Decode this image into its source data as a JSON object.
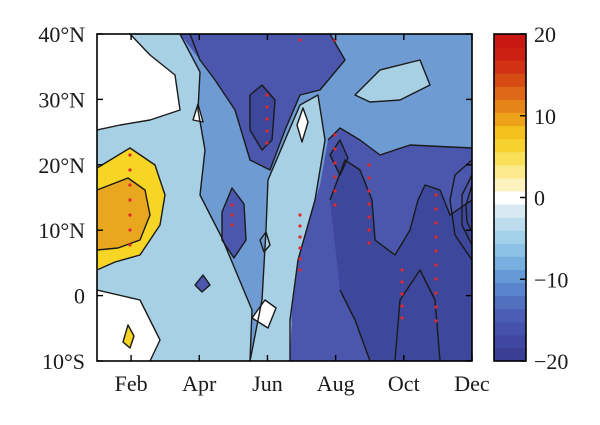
{
  "chart_data": {
    "type": "heatmap",
    "title": "",
    "xlabel": "",
    "ylabel": "",
    "x_tick_labels": [
      "Feb",
      "Apr",
      "Jun",
      "Aug",
      "Oct",
      "Dec"
    ],
    "x_ticks": [
      2,
      4,
      6,
      8,
      10,
      12
    ],
    "xlim": [
      1,
      12
    ],
    "y_tick_labels": [
      "10°S",
      "0",
      "10°N",
      "20°N",
      "30°N",
      "40°N"
    ],
    "y_ticks": [
      -10,
      0,
      10,
      20,
      30,
      40
    ],
    "ylim": [
      -10,
      40
    ],
    "colorbar": {
      "min": -20,
      "max": 20,
      "tick_values": [
        -20,
        -10,
        0,
        10,
        20
      ],
      "tick_labels": [
        "−20",
        "−10",
        "0",
        "10",
        "20"
      ],
      "colors": [
        "#3a3f94",
        "#3f47a0",
        "#4552ab",
        "#4b5eb6",
        "#5270c0",
        "#5a84cc",
        "#6699d6",
        "#77afdf",
        "#8bc2e6",
        "#a3d1ea",
        "#bdddee",
        "#d8e9f2",
        "#ffffff",
        "#fbf2bd",
        "#fbe98c",
        "#f9df5a",
        "#f7d12d",
        "#f4c01b",
        "#eea219",
        "#e58518",
        "#dd6717",
        "#d74b15",
        "#d13214",
        "#cc2012",
        "#c81711"
      ]
    },
    "fill_colors": {
      "background": "#6f9bd3",
      "light": "#a7d0e4",
      "pale": "#c6e1ee",
      "dark": "#4a57ac",
      "darker": "#3d479c",
      "white": "#ffffff",
      "yellow": "#f6d524",
      "orange": "#e9a71f"
    },
    "significance_color": "#e0282e",
    "grid": false,
    "legend": "colorbar-right"
  }
}
